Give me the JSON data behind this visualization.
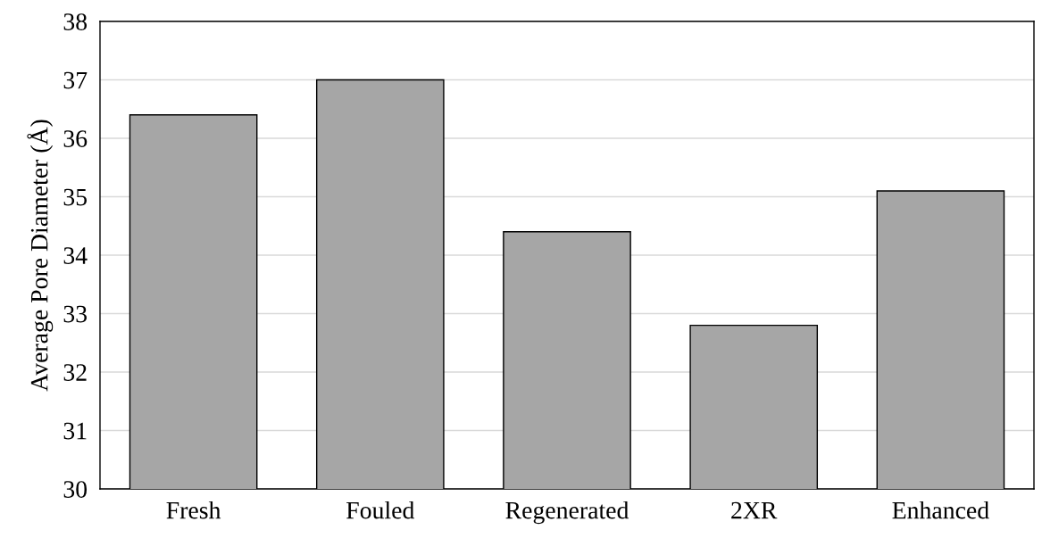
{
  "chart_data": {
    "type": "bar",
    "ylabel": "Average Pore Diameter (Å)",
    "categories": [
      "Fresh",
      "Fouled",
      "Regenerated",
      "2XR",
      "Enhanced"
    ],
    "values": [
      36.4,
      37.0,
      34.4,
      32.8,
      35.1
    ],
    "color": "#a6a6a6",
    "ylim": [
      30,
      38
    ],
    "yticks": [
      30,
      31,
      32,
      33,
      34,
      35,
      36,
      37,
      38
    ],
    "grid": "y"
  }
}
